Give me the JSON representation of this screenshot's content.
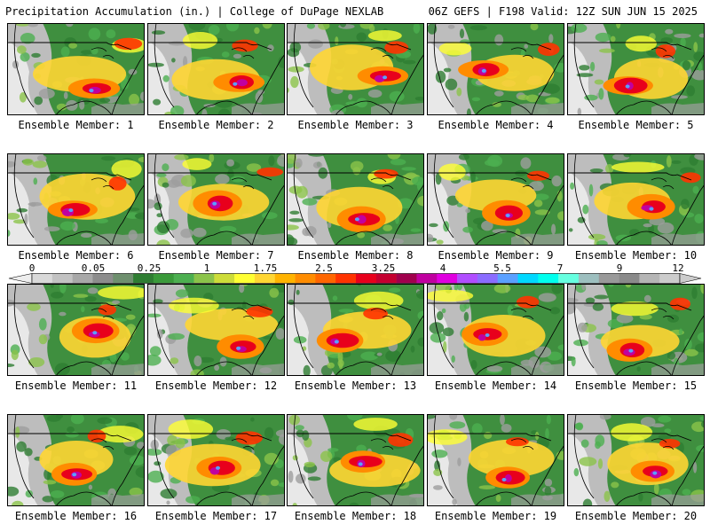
{
  "header": {
    "title_left": "Precipitation Accumulation (in.) | College of DuPage NEXLAB",
    "title_right": "06Z GEFS | F198 Valid: 12Z SUN JUN 15 2025"
  },
  "panels": [
    {
      "label": "Ensemble Member: 1"
    },
    {
      "label": "Ensemble Member: 2"
    },
    {
      "label": "Ensemble Member: 3"
    },
    {
      "label": "Ensemble Member: 4"
    },
    {
      "label": "Ensemble Member: 5"
    },
    {
      "label": "Ensemble Member: 6"
    },
    {
      "label": "Ensemble Member: 7"
    },
    {
      "label": "Ensemble Member: 8"
    },
    {
      "label": "Ensemble Member: 9"
    },
    {
      "label": "Ensemble Member: 10"
    },
    {
      "label": "Ensemble Member: 11"
    },
    {
      "label": "Ensemble Member: 12"
    },
    {
      "label": "Ensemble Member: 13"
    },
    {
      "label": "Ensemble Member: 14"
    },
    {
      "label": "Ensemble Member: 15"
    },
    {
      "label": "Ensemble Member: 16"
    },
    {
      "label": "Ensemble Member: 17"
    },
    {
      "label": "Ensemble Member: 18"
    },
    {
      "label": "Ensemble Member: 19"
    },
    {
      "label": "Ensemble Member: 20"
    }
  ],
  "colorbar": {
    "labels": [
      "0",
      "0.05",
      "0.25",
      "1",
      "1.75",
      "2.5",
      "3.25",
      "4",
      "5.5",
      "7",
      "9",
      "12"
    ],
    "colors": [
      "#d9d9d9",
      "#c2c2c2",
      "#a8a8a8",
      "#8c8c8c",
      "#6e8f6e",
      "#2e7d32",
      "#3a9a3a",
      "#4caf50",
      "#8bc34a",
      "#cddc39",
      "#ffff33",
      "#ffd633",
      "#ffb300",
      "#ff8c00",
      "#ff6600",
      "#ff3300",
      "#e8001c",
      "#c40030",
      "#a0004d",
      "#c000a0",
      "#e000e0",
      "#b04dff",
      "#8a6cff",
      "#5aa0ff",
      "#00d8ff",
      "#00ffee",
      "#66ffe0",
      "#9dbfbf",
      "#999999",
      "#8a8a8a",
      "#b5b5b5",
      "#cccccc"
    ]
  }
}
